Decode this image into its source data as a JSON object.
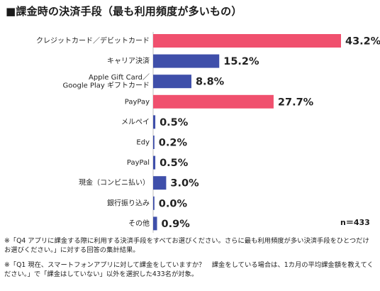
{
  "chart_data": {
    "type": "bar",
    "orientation": "horizontal",
    "title": "■課金時の決済手段（最も利用頻度が多いもの）",
    "categories": [
      [
        "クレジットカード／デビットカード"
      ],
      [
        "キャリア決済"
      ],
      [
        "Apple Gift Card／",
        "Google Play ギフトカード"
      ],
      [
        "PayPay"
      ],
      [
        "メルペイ"
      ],
      [
        "Edy"
      ],
      [
        "PayPal"
      ],
      [
        "現金（コンビニ払い）"
      ],
      [
        "銀行振り込み"
      ],
      [
        "その他"
      ]
    ],
    "values": [
      43.2,
      15.2,
      8.8,
      27.7,
      0.5,
      0.2,
      0.5,
      3.0,
      0.0,
      0.9
    ],
    "value_labels": [
      "43.2%",
      "15.2%",
      "8.8%",
      "27.7%",
      "0.5%",
      "0.2%",
      "0.5%",
      "3.0%",
      "0.0%",
      "0.9%"
    ],
    "bar_colors": [
      "#f0506e",
      "#3f4faa",
      "#3f4faa",
      "#f0506e",
      "#3f4faa",
      "#3f4faa",
      "#3f4faa",
      "#3f4faa",
      "#3f4faa",
      "#3f4faa"
    ],
    "xlim": [
      0,
      43.2
    ],
    "sample_size": "n＝433"
  },
  "notes": [
    "※「Q4 アプリに課金する際に利用する決済手段をすべてお選びください。さらに最も利用頻度が多い決済手段をひとつだけお選びください。」に対する回答の集計結果。",
    "※「Q1 現在、スマートフォンアプリに対して課金をしていますか？　課金をしている場合は、1カ月の平均課金額を教えてください。」で「課金はしていない」以外を選択した433名が対象。"
  ]
}
